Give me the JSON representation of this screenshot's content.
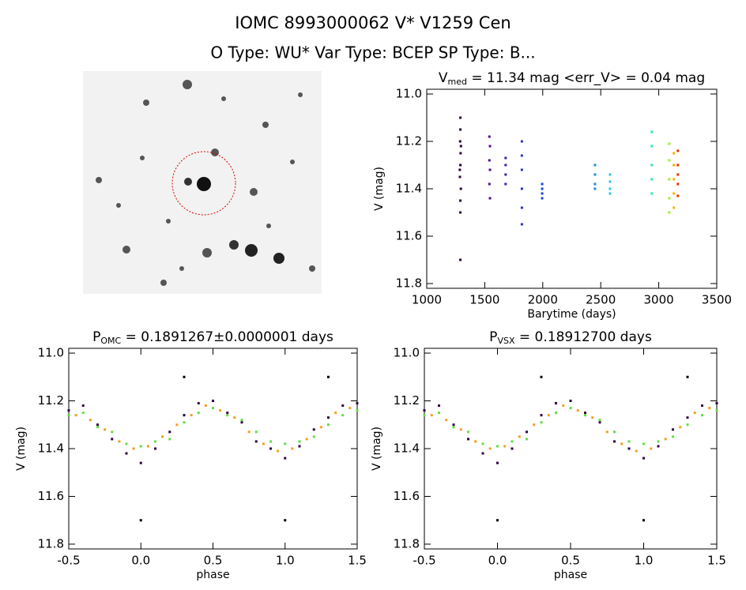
{
  "header": {
    "title": "IOMC 8993000062   V* V1259 Cen",
    "subtitle": "O Type: WU*  Var Type: BCEP  SP Type: B..."
  },
  "chart_data": [
    {
      "type": "scatter",
      "title": [
        "V",
        "med",
        " = 11.34 mag <err_V> = 0.04 mag"
      ],
      "x_label": "Barytime (days)",
      "y_label": "V (mag)",
      "xlim": [
        1000,
        3500
      ],
      "xticks": [
        1000,
        1500,
        2000,
        2500,
        3000,
        3500
      ],
      "ylim": [
        11.82,
        10.98
      ],
      "yticks": [
        {
          "value": 11.0,
          "label": "11.0"
        },
        11.2,
        11.4,
        11.6,
        11.8
      ],
      "series": [
        {
          "color": "#2a0040",
          "x": [
            1290,
            1290,
            1288,
            1292,
            1290,
            1286,
            1294,
            1290,
            1290,
            1290,
            1295,
            1285
          ],
          "values": [
            11.1,
            11.15,
            11.2,
            11.25,
            11.3,
            11.35,
            11.4,
            11.45,
            11.5,
            11.7,
            11.22,
            11.32
          ]
        },
        {
          "color": "#50108a",
          "x": [
            1540,
            1545,
            1540,
            1545,
            1540,
            1545
          ],
          "values": [
            11.18,
            11.22,
            11.28,
            11.32,
            11.38,
            11.44
          ]
        },
        {
          "color": "#4020a8",
          "x": [
            1680,
            1680,
            1680,
            1680
          ],
          "values": [
            11.27,
            11.3,
            11.34,
            11.38
          ]
        },
        {
          "color": "#2838b8",
          "x": [
            1820,
            1820,
            1820,
            1820,
            1820,
            1820
          ],
          "values": [
            11.2,
            11.26,
            11.32,
            11.4,
            11.48,
            11.55
          ]
        },
        {
          "color": "#1848c8",
          "x": [
            1995,
            1995,
            1995,
            1995
          ],
          "values": [
            11.38,
            11.4,
            11.42,
            11.44
          ]
        },
        {
          "color": "#1890d8",
          "x": [
            2450,
            2450,
            2450,
            2450
          ],
          "values": [
            11.3,
            11.34,
            11.38,
            11.4
          ]
        },
        {
          "color": "#28c8e8",
          "x": [
            2580,
            2580,
            2580,
            2580
          ],
          "values": [
            11.34,
            11.37,
            11.4,
            11.42
          ]
        },
        {
          "color": "#30e8a0",
          "x": [
            2940,
            2940,
            2940,
            2940,
            2940
          ],
          "values": [
            11.16,
            11.22,
            11.3,
            11.36,
            11.42
          ]
        },
        {
          "color": "#a0ec30",
          "x": [
            3090,
            3090,
            3090,
            3090,
            3090
          ],
          "values": [
            11.21,
            11.28,
            11.36,
            11.44,
            11.5
          ]
        },
        {
          "color": "#f8b000",
          "x": [
            3130,
            3130,
            3130,
            3130,
            3130
          ],
          "values": [
            11.25,
            11.3,
            11.36,
            11.42,
            11.48
          ]
        },
        {
          "color": "#e83000",
          "x": [
            3165,
            3165,
            3165,
            3165,
            3165
          ],
          "values": [
            11.24,
            11.3,
            11.34,
            11.38,
            11.43
          ]
        }
      ]
    },
    {
      "type": "scatter",
      "title": [
        "P",
        "OMC",
        " = 0.1891267±0.0000001 days"
      ],
      "x_label": "phase",
      "y_label": "V (mag)",
      "xlim": [
        -0.5,
        1.5
      ],
      "xticks": [
        -0.5,
        {
          "value": 0,
          "label": "0.0"
        },
        0.5,
        {
          "value": 1,
          "label": "1.0"
        },
        1.5
      ],
      "ylim": [
        11.82,
        10.98
      ],
      "yticks": [
        {
          "value": 11.0,
          "label": "11.0"
        },
        11.2,
        11.4,
        11.6,
        11.8
      ],
      "series": [
        {
          "color": "#300040",
          "x": [
            -0.5,
            -0.4,
            -0.3,
            -0.2,
            -0.1,
            0,
            0.1,
            0.2,
            0.3,
            0.4,
            0.5,
            0.6,
            0.7,
            0.8,
            0.9,
            1,
            1.1,
            1.2,
            1.3,
            1.4,
            1.5
          ],
          "values": [
            11.24,
            11.22,
            11.3,
            11.36,
            11.42,
            11.46,
            11.4,
            11.33,
            11.26,
            11.21,
            11.2,
            11.25,
            11.29,
            11.37,
            11.4,
            11.44,
            11.39,
            11.32,
            11.27,
            11.22,
            11.21
          ]
        },
        {
          "color": "#f0a020",
          "x": [
            -0.45,
            -0.35,
            -0.25,
            -0.15,
            -0.05,
            0.05,
            0.15,
            0.25,
            0.35,
            0.45,
            0.55,
            0.65,
            0.75,
            0.85,
            0.95,
            1.05,
            1.15,
            1.25,
            1.35,
            1.45
          ],
          "values": [
            11.26,
            11.28,
            11.32,
            11.37,
            11.4,
            11.39,
            11.35,
            11.3,
            11.26,
            11.22,
            11.24,
            11.27,
            11.33,
            11.38,
            11.41,
            11.4,
            11.36,
            11.31,
            11.25,
            11.23
          ]
        },
        {
          "color": "#60e040",
          "x": [
            -0.5,
            -0.4,
            -0.3,
            -0.2,
            -0.1,
            0,
            0.1,
            0.2,
            0.3,
            0.4,
            0.5,
            0.6,
            0.7,
            0.8,
            0.9,
            1,
            1.1,
            1.2,
            1.3,
            1.4,
            1.5
          ],
          "values": [
            11.26,
            11.25,
            11.31,
            11.33,
            11.38,
            11.39,
            11.37,
            11.36,
            11.29,
            11.25,
            11.23,
            11.26,
            11.28,
            11.33,
            11.37,
            11.38,
            11.37,
            11.35,
            11.3,
            11.26,
            11.24
          ]
        },
        {
          "color": "#000000",
          "x": [
            0,
            1,
            0.3,
            1.3
          ],
          "values": [
            11.7,
            11.7,
            11.1,
            11.1
          ]
        }
      ]
    },
    {
      "type": "scatter",
      "title": [
        "P",
        "VSX",
        " = 0.18912700 days"
      ],
      "x_label": "phase",
      "y_label": "V (mag)",
      "xlim": [
        -0.5,
        1.5
      ],
      "xticks": [
        -0.5,
        {
          "value": 0,
          "label": "0.0"
        },
        0.5,
        {
          "value": 1,
          "label": "1.0"
        },
        1.5
      ],
      "ylim": [
        11.82,
        10.98
      ],
      "yticks": [
        {
          "value": 11.0,
          "label": "11.0"
        },
        11.2,
        11.4,
        11.6,
        11.8
      ],
      "series": [
        {
          "color": "#300040",
          "x": [
            -0.5,
            -0.4,
            -0.3,
            -0.2,
            -0.1,
            0,
            0.1,
            0.2,
            0.3,
            0.4,
            0.5,
            0.6,
            0.7,
            0.8,
            0.9,
            1,
            1.1,
            1.2,
            1.3,
            1.4,
            1.5
          ],
          "values": [
            11.24,
            11.22,
            11.3,
            11.36,
            11.42,
            11.46,
            11.4,
            11.33,
            11.26,
            11.21,
            11.2,
            11.25,
            11.29,
            11.37,
            11.4,
            11.44,
            11.39,
            11.32,
            11.27,
            11.22,
            11.21
          ]
        },
        {
          "color": "#f0a020",
          "x": [
            -0.45,
            -0.35,
            -0.25,
            -0.15,
            -0.05,
            0.05,
            0.15,
            0.25,
            0.35,
            0.45,
            0.55,
            0.65,
            0.75,
            0.85,
            0.95,
            1.05,
            1.15,
            1.25,
            1.35,
            1.45
          ],
          "values": [
            11.26,
            11.28,
            11.32,
            11.37,
            11.4,
            11.39,
            11.35,
            11.3,
            11.26,
            11.22,
            11.24,
            11.27,
            11.33,
            11.38,
            11.41,
            11.4,
            11.36,
            11.31,
            11.25,
            11.23
          ]
        },
        {
          "color": "#60e040",
          "x": [
            -0.5,
            -0.4,
            -0.3,
            -0.2,
            -0.1,
            0,
            0.1,
            0.2,
            0.3,
            0.4,
            0.5,
            0.6,
            0.7,
            0.8,
            0.9,
            1,
            1.1,
            1.2,
            1.3,
            1.4,
            1.5
          ],
          "values": [
            11.26,
            11.25,
            11.31,
            11.33,
            11.38,
            11.39,
            11.37,
            11.36,
            11.29,
            11.25,
            11.23,
            11.26,
            11.28,
            11.33,
            11.37,
            11.38,
            11.37,
            11.35,
            11.3,
            11.26,
            11.24
          ]
        },
        {
          "color": "#000000",
          "x": [
            0,
            1,
            0.3,
            1.3
          ],
          "values": [
            11.7,
            11.7,
            11.1,
            11.1
          ]
        }
      ]
    }
  ]
}
